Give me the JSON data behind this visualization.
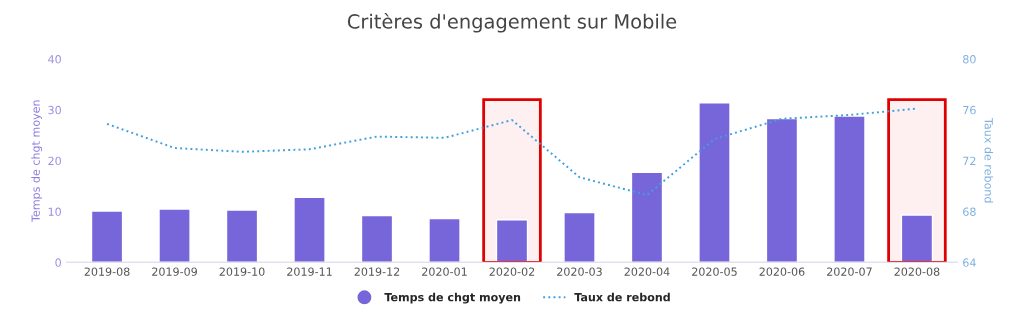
{
  "chart_data": {
    "type": "bar",
    "title": "Critères d'engagement sur Mobile",
    "ylabel": "Temps de chgt moyen",
    "y2label": "Taux de rebond",
    "categories": [
      "2019-08",
      "2019-09",
      "2019-10",
      "2019-11",
      "2019-12",
      "2020-01",
      "2020-02",
      "2020-03",
      "2020-04",
      "2020-05",
      "2020-06",
      "2020-07",
      "2020-08"
    ],
    "series": [
      {
        "name": "Temps de chgt moyen",
        "color": "#7766d9",
        "values": [
          10.1,
          10.5,
          10.3,
          12.8,
          9.2,
          8.6,
          8.4,
          9.8,
          17.7,
          31.4,
          28.3,
          28.8,
          9.3
        ]
      },
      {
        "name": "Taux de rebond",
        "type": "line",
        "axis": "y2",
        "color": "#3fa0e0",
        "line_style": "dotted",
        "values": [
          74.9,
          73.0,
          72.7,
          72.9,
          73.9,
          73.8,
          75.2,
          70.7,
          69.3,
          73.7,
          75.3,
          75.6,
          76.1
        ]
      }
    ],
    "ylim": [
      0,
      40
    ],
    "yticks": [
      0,
      10,
      20,
      30,
      40
    ],
    "y2lim": [
      64,
      80
    ],
    "y2ticks": [
      64,
      68,
      72,
      76,
      80
    ],
    "bands": [
      {
        "axis": "x",
        "from": "2020-02",
        "to": "2020-02",
        "color": "#e00000"
      },
      {
        "axis": "x",
        "from": "2020-08",
        "to": "2020-08",
        "color": "#e00000"
      }
    ],
    "grid": false,
    "legend": "bottom"
  }
}
